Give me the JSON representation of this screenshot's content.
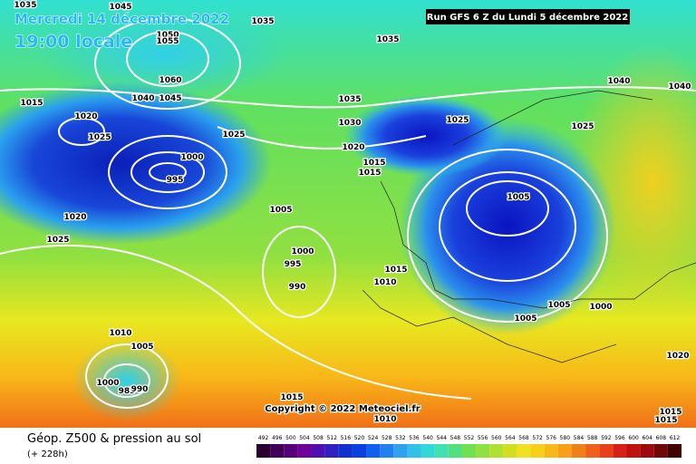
{
  "header": {
    "date": "Mercredi 14 décembre 2022",
    "time": "19:00 locale",
    "run": "Run GFS 6 Z du Lundi 5 décembre 2022"
  },
  "copyright": "Copyright © 2022 Meteociel.fr",
  "isobar_labels": [
    "1035",
    "1045",
    "1035",
    "1050",
    "1055",
    "1035",
    "1060",
    "1040",
    "1045",
    "1015",
    "1020",
    "1035",
    "1025",
    "1040",
    "1040",
    "1030",
    "1025",
    "1025",
    "1025",
    "1020",
    "1000",
    "1015",
    "1015",
    "995",
    "1005",
    "1020",
    "1005",
    "1025",
    "1000",
    "995",
    "1015",
    "1010",
    "990",
    "1005",
    "1000",
    "1005",
    "1010",
    "1005",
    "1020",
    "1000",
    "985",
    "990",
    "1015",
    "1010",
    "1015",
    "1015"
  ],
  "footer": {
    "title": "Géop. Z500 & pression au sol",
    "lead": "(+ 228h)"
  },
  "legend": {
    "labels": [
      492,
      496,
      500,
      504,
      508,
      512,
      516,
      520,
      524,
      528,
      532,
      536,
      540,
      544,
      548,
      552,
      556,
      560,
      564,
      568,
      572,
      576,
      580,
      584,
      588,
      592,
      596,
      600,
      604,
      608,
      612
    ]
  }
}
